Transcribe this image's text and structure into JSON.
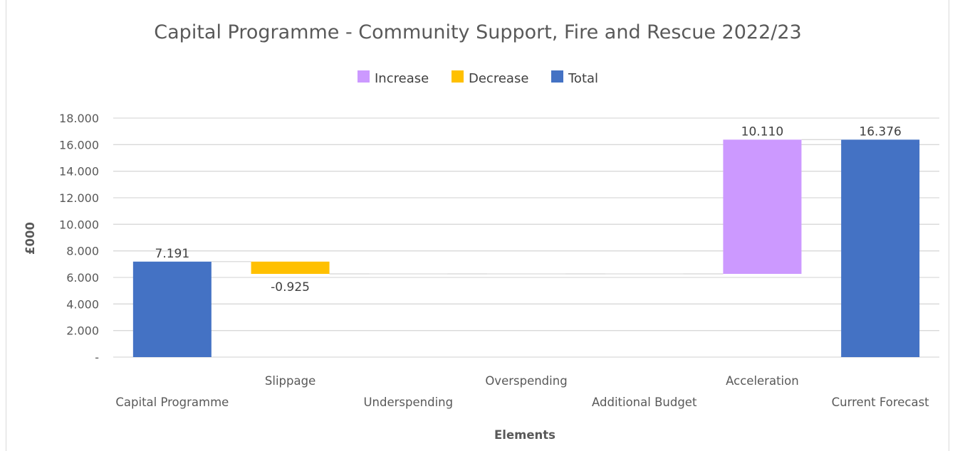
{
  "chart_data": {
    "type": "bar",
    "subtype": "waterfall",
    "title": "Capital Programme - Community Support, Fire and Rescue 2022/23",
    "xlabel": "Elements",
    "ylabel": "£000",
    "ylim": [
      0,
      18
    ],
    "yticks": [
      0,
      2,
      4,
      6,
      8,
      10,
      12,
      14,
      16,
      18
    ],
    "ytick_labels": [
      "-",
      "2.000",
      "4.000",
      "6.000",
      "8.000",
      "10.000",
      "12.000",
      "14.000",
      "16.000",
      "18.000"
    ],
    "grid": true,
    "legend_position": "top",
    "legend": [
      {
        "name": "Increase",
        "color": "#cc99ff"
      },
      {
        "name": "Decrease",
        "color": "#ffc000"
      },
      {
        "name": "Total",
        "color": "#4472c4"
      }
    ],
    "categories": [
      "Capital Programme",
      "Slippage",
      "Underspending",
      "Overspending",
      "Additional Budget",
      "Acceleration",
      "Current Forecast"
    ],
    "bars": [
      {
        "category": "Capital Programme",
        "kind": "Total",
        "start": 0,
        "end": 7.191,
        "label": "7.191"
      },
      {
        "category": "Slippage",
        "kind": "Decrease",
        "start": 7.191,
        "end": 6.266,
        "label": "-0.925"
      },
      {
        "category": "Underspending",
        "kind": "Decrease",
        "start": 6.266,
        "end": 6.266,
        "label": ""
      },
      {
        "category": "Overspending",
        "kind": "Increase",
        "start": 6.266,
        "end": 6.266,
        "label": ""
      },
      {
        "category": "Additional Budget",
        "kind": "Increase",
        "start": 6.266,
        "end": 6.266,
        "label": ""
      },
      {
        "category": "Acceleration",
        "kind": "Increase",
        "start": 6.266,
        "end": 16.376,
        "label": "10.110"
      },
      {
        "category": "Current Forecast",
        "kind": "Total",
        "start": 0,
        "end": 16.376,
        "label": "16.376"
      }
    ],
    "colors": {
      "increase": "#cc99ff",
      "decrease": "#ffc000",
      "total": "#4472c4",
      "grid": "#d9d9d9"
    }
  }
}
